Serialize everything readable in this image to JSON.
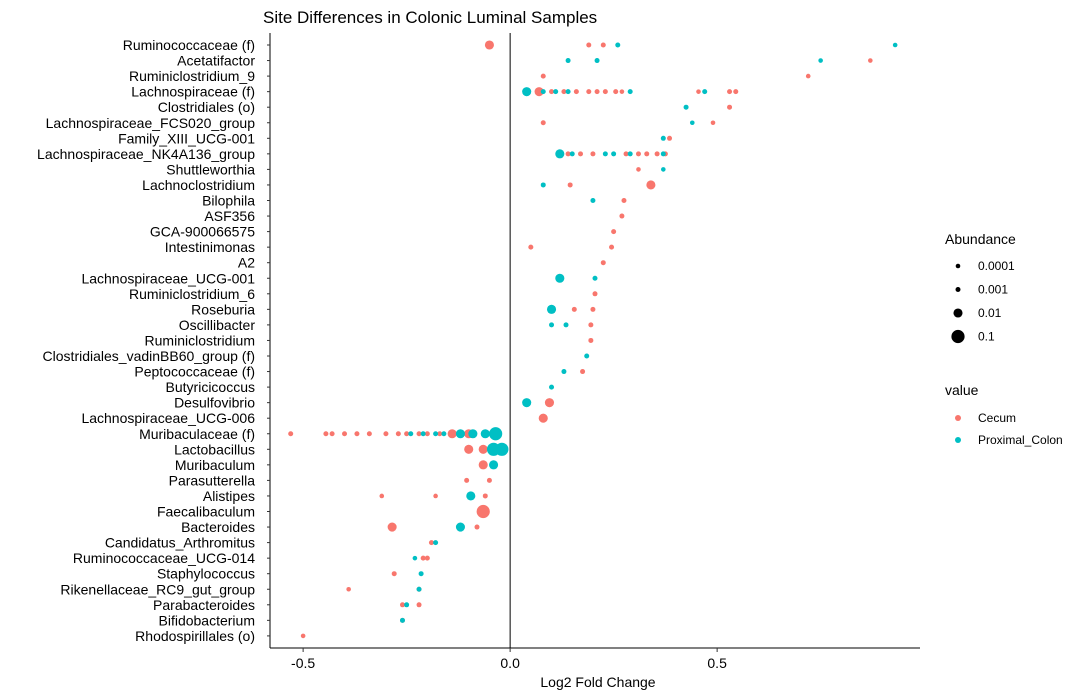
{
  "chart_data": {
    "type": "scatter",
    "title": "Site Differences in Colonic Luminal Samples",
    "xlabel": "Log2 Fold Change",
    "ylabel": "",
    "xlim": [
      -0.58,
      0.99
    ],
    "xticks": [
      {
        "value": -0.5,
        "label": "-0.5"
      },
      {
        "value": 0.0,
        "label": "0.0"
      },
      {
        "value": 0.5,
        "label": "0.5"
      }
    ],
    "grid": false,
    "reference_line_x": 0,
    "categories": [
      "Ruminococcaceae (f)",
      "Acetatifactor",
      "Ruminiclostridium_9",
      "Lachnospiraceae (f)",
      "Clostridiales (o)",
      "Lachnospiraceae_FCS020_group",
      "Family_XIII_UCG-001",
      "Lachnospiraceae_NK4A136_group",
      "Shuttleworthia",
      "Lachnoclostridium",
      "Bilophila",
      "ASF356",
      "GCA-900066575",
      "Intestinimonas",
      "A2",
      "Lachnospiraceae_UCG-001",
      "Ruminiclostridium_6",
      "Roseburia",
      "Oscillibacter",
      "Ruminiclostridium",
      "Clostridiales_vadinBB60_group (f)",
      "Peptococcaceae (f)",
      "Butyricicoccus",
      "Desulfovibrio",
      "Lachnospiraceae_UCG-006",
      "Muribaculaceae (f)",
      "Lactobacillus",
      "Muribaculum",
      "Parasutterella",
      "Alistipes",
      "Faecalibaculum",
      "Bacteroides",
      "Candidatus_Arthromitus",
      "Ruminococcaceae_UCG-014",
      "Staphylococcus",
      "Rikenellaceae_RC9_gut_group",
      "Parabacteroides",
      "Bifidobacterium",
      "Rhodospirillales (o)"
    ],
    "legend": {
      "position": "right",
      "size": {
        "title": "Abundance",
        "entries": [
          {
            "label": "0.0001",
            "value": 0.0001
          },
          {
            "label": "0.001",
            "value": 0.001
          },
          {
            "label": "0.01",
            "value": 0.01
          },
          {
            "label": "0.1",
            "value": 0.1
          }
        ]
      },
      "color": {
        "title": "value",
        "entries": [
          {
            "label": "Cecum",
            "color": "#F8766D"
          },
          {
            "label": "Proximal_Colon",
            "color": "#00BFC4"
          }
        ]
      }
    },
    "series": [
      {
        "name": "Cecum",
        "color": "#F8766D",
        "points": [
          {
            "y": "Ruminococcaceae (f)",
            "x": -0.05,
            "abundance": 0.01
          },
          {
            "y": "Ruminococcaceae (f)",
            "x": 0.19,
            "abundance": 0.001
          },
          {
            "y": "Ruminococcaceae (f)",
            "x": 0.225,
            "abundance": 0.001
          },
          {
            "y": "Acetatifactor",
            "x": 0.87,
            "abundance": 0.0001
          },
          {
            "y": "Ruminiclostridium_9",
            "x": 0.08,
            "abundance": 0.001
          },
          {
            "y": "Ruminiclostridium_9",
            "x": 0.72,
            "abundance": 0.0001
          },
          {
            "y": "Lachnospiraceae (f)",
            "x": 0.07,
            "abundance": 0.01
          },
          {
            "y": "Lachnospiraceae (f)",
            "x": 0.1,
            "abundance": 0.001
          },
          {
            "y": "Lachnospiraceae (f)",
            "x": 0.13,
            "abundance": 0.001
          },
          {
            "y": "Lachnospiraceae (f)",
            "x": 0.16,
            "abundance": 0.001
          },
          {
            "y": "Lachnospiraceae (f)",
            "x": 0.19,
            "abundance": 0.001
          },
          {
            "y": "Lachnospiraceae (f)",
            "x": 0.21,
            "abundance": 0.001
          },
          {
            "y": "Lachnospiraceae (f)",
            "x": 0.23,
            "abundance": 0.001
          },
          {
            "y": "Lachnospiraceae (f)",
            "x": 0.255,
            "abundance": 0.001
          },
          {
            "y": "Lachnospiraceae (f)",
            "x": 0.27,
            "abundance": 0.0001
          },
          {
            "y": "Lachnospiraceae (f)",
            "x": 0.455,
            "abundance": 0.0001
          },
          {
            "y": "Lachnospiraceae (f)",
            "x": 0.53,
            "abundance": 0.001
          },
          {
            "y": "Lachnospiraceae (f)",
            "x": 0.545,
            "abundance": 0.001
          },
          {
            "y": "Clostridiales (o)",
            "x": 0.53,
            "abundance": 0.001
          },
          {
            "y": "Lachnospiraceae_FCS020_group",
            "x": 0.08,
            "abundance": 0.001
          },
          {
            "y": "Lachnospiraceae_FCS020_group",
            "x": 0.49,
            "abundance": 0.0001
          },
          {
            "y": "Family_XIII_UCG-001",
            "x": 0.385,
            "abundance": 0.001
          },
          {
            "y": "Lachnospiraceae_NK4A136_group",
            "x": 0.14,
            "abundance": 0.001
          },
          {
            "y": "Lachnospiraceae_NK4A136_group",
            "x": 0.17,
            "abundance": 0.001
          },
          {
            "y": "Lachnospiraceae_NK4A136_group",
            "x": 0.2,
            "abundance": 0.001
          },
          {
            "y": "Lachnospiraceae_NK4A136_group",
            "x": 0.28,
            "abundance": 0.001
          },
          {
            "y": "Lachnospiraceae_NK4A136_group",
            "x": 0.31,
            "abundance": 0.001
          },
          {
            "y": "Lachnospiraceae_NK4A136_group",
            "x": 0.33,
            "abundance": 0.001
          },
          {
            "y": "Lachnospiraceae_NK4A136_group",
            "x": 0.355,
            "abundance": 0.001
          },
          {
            "y": "Lachnospiraceae_NK4A136_group",
            "x": 0.375,
            "abundance": 0.001
          },
          {
            "y": "Shuttleworthia",
            "x": 0.31,
            "abundance": 0.0001
          },
          {
            "y": "Lachnoclostridium",
            "x": 0.145,
            "abundance": 0.001
          },
          {
            "y": "Lachnoclostridium",
            "x": 0.34,
            "abundance": 0.01
          },
          {
            "y": "Bilophila",
            "x": 0.275,
            "abundance": 0.001
          },
          {
            "y": "ASF356",
            "x": 0.27,
            "abundance": 0.001
          },
          {
            "y": "GCA-900066575",
            "x": 0.25,
            "abundance": 0.001
          },
          {
            "y": "Intestinimonas",
            "x": 0.05,
            "abundance": 0.001
          },
          {
            "y": "Intestinimonas",
            "x": 0.245,
            "abundance": 0.001
          },
          {
            "y": "A2",
            "x": 0.225,
            "abundance": 0.001
          },
          {
            "y": "Ruminiclostridium_6",
            "x": 0.205,
            "abundance": 0.001
          },
          {
            "y": "Roseburia",
            "x": 0.155,
            "abundance": 0.001
          },
          {
            "y": "Roseburia",
            "x": 0.2,
            "abundance": 0.001
          },
          {
            "y": "Oscillibacter",
            "x": 0.195,
            "abundance": 0.001
          },
          {
            "y": "Ruminiclostridium",
            "x": 0.195,
            "abundance": 0.001
          },
          {
            "y": "Peptococcaceae (f)",
            "x": 0.175,
            "abundance": 0.001
          },
          {
            "y": "Desulfovibrio",
            "x": 0.095,
            "abundance": 0.01
          },
          {
            "y": "Lachnospiraceae_UCG-006",
            "x": 0.08,
            "abundance": 0.01
          },
          {
            "y": "Muribaculaceae (f)",
            "x": -0.53,
            "abundance": 0.001
          },
          {
            "y": "Muribaculaceae (f)",
            "x": -0.445,
            "abundance": 0.001
          },
          {
            "y": "Muribaculaceae (f)",
            "x": -0.43,
            "abundance": 0.001
          },
          {
            "y": "Muribaculaceae (f)",
            "x": -0.4,
            "abundance": 0.001
          },
          {
            "y": "Muribaculaceae (f)",
            "x": -0.37,
            "abundance": 0.001
          },
          {
            "y": "Muribaculaceae (f)",
            "x": -0.34,
            "abundance": 0.001
          },
          {
            "y": "Muribaculaceae (f)",
            "x": -0.3,
            "abundance": 0.001
          },
          {
            "y": "Muribaculaceae (f)",
            "x": -0.27,
            "abundance": 0.001
          },
          {
            "y": "Muribaculaceae (f)",
            "x": -0.25,
            "abundance": 0.001
          },
          {
            "y": "Muribaculaceae (f)",
            "x": -0.22,
            "abundance": 0.001
          },
          {
            "y": "Muribaculaceae (f)",
            "x": -0.2,
            "abundance": 0.001
          },
          {
            "y": "Muribaculaceae (f)",
            "x": -0.17,
            "abundance": 0.001
          },
          {
            "y": "Muribaculaceae (f)",
            "x": -0.14,
            "abundance": 0.01
          },
          {
            "y": "Muribaculaceae (f)",
            "x": -0.1,
            "abundance": 0.01
          },
          {
            "y": "Lactobacillus",
            "x": -0.1,
            "abundance": 0.01
          },
          {
            "y": "Lactobacillus",
            "x": -0.065,
            "abundance": 0.01
          },
          {
            "y": "Muribaculum",
            "x": -0.065,
            "abundance": 0.01
          },
          {
            "y": "Parasutterella",
            "x": -0.105,
            "abundance": 0.001
          },
          {
            "y": "Parasutterella",
            "x": -0.05,
            "abundance": 0.001
          },
          {
            "y": "Alistipes",
            "x": -0.31,
            "abundance": 0.0001
          },
          {
            "y": "Alistipes",
            "x": -0.18,
            "abundance": 0.0001
          },
          {
            "y": "Alistipes",
            "x": -0.06,
            "abundance": 0.001
          },
          {
            "y": "Faecalibaculum",
            "x": -0.065,
            "abundance": 0.1
          },
          {
            "y": "Bacteroides",
            "x": -0.285,
            "abundance": 0.01
          },
          {
            "y": "Bacteroides",
            "x": -0.08,
            "abundance": 0.001
          },
          {
            "y": "Candidatus_Arthromitus",
            "x": -0.19,
            "abundance": 0.001
          },
          {
            "y": "Ruminococcaceae_UCG-014",
            "x": -0.21,
            "abundance": 0.001
          },
          {
            "y": "Ruminococcaceae_UCG-014",
            "x": -0.2,
            "abundance": 0.001
          },
          {
            "y": "Staphylococcus",
            "x": -0.28,
            "abundance": 0.001
          },
          {
            "y": "Rikenellaceae_RC9_gut_group",
            "x": -0.39,
            "abundance": 0.0001
          },
          {
            "y": "Rikenellaceae_RC9_gut_group",
            "x": -0.22,
            "abundance": 0.001
          },
          {
            "y": "Parabacteroides",
            "x": -0.26,
            "abundance": 0.001
          },
          {
            "y": "Parabacteroides",
            "x": -0.22,
            "abundance": 0.001
          },
          {
            "y": "Bifidobacterium",
            "x": -0.26,
            "abundance": 0.001
          },
          {
            "y": "Rhodospirillales (o)",
            "x": -0.5,
            "abundance": 0.0001
          }
        ]
      },
      {
        "name": "Proximal_Colon",
        "color": "#00BFC4",
        "points": [
          {
            "y": "Ruminococcaceae (f)",
            "x": 0.26,
            "abundance": 0.001
          },
          {
            "y": "Ruminococcaceae (f)",
            "x": 0.93,
            "abundance": 0.0001
          },
          {
            "y": "Acetatifactor",
            "x": 0.14,
            "abundance": 0.001
          },
          {
            "y": "Acetatifactor",
            "x": 0.21,
            "abundance": 0.001
          },
          {
            "y": "Acetatifactor",
            "x": 0.75,
            "abundance": 0.0001
          },
          {
            "y": "Lachnospiraceae (f)",
            "x": 0.04,
            "abundance": 0.01
          },
          {
            "y": "Lachnospiraceae (f)",
            "x": 0.08,
            "abundance": 0.001
          },
          {
            "y": "Lachnospiraceae (f)",
            "x": 0.11,
            "abundance": 0.001
          },
          {
            "y": "Lachnospiraceae (f)",
            "x": 0.14,
            "abundance": 0.001
          },
          {
            "y": "Lachnospiraceae (f)",
            "x": 0.29,
            "abundance": 0.001
          },
          {
            "y": "Lachnospiraceae (f)",
            "x": 0.47,
            "abundance": 0.001
          },
          {
            "y": "Clostridiales (o)",
            "x": 0.425,
            "abundance": 0.001
          },
          {
            "y": "Lachnospiraceae_FCS020_group",
            "x": 0.44,
            "abundance": 0.0001
          },
          {
            "y": "Family_XIII_UCG-001",
            "x": 0.37,
            "abundance": 0.001
          },
          {
            "y": "Lachnospiraceae_NK4A136_group",
            "x": 0.12,
            "abundance": 0.01
          },
          {
            "y": "Lachnospiraceae_NK4A136_group",
            "x": 0.15,
            "abundance": 0.001
          },
          {
            "y": "Lachnospiraceae_NK4A136_group",
            "x": 0.23,
            "abundance": 0.001
          },
          {
            "y": "Lachnospiraceae_NK4A136_group",
            "x": 0.25,
            "abundance": 0.001
          },
          {
            "y": "Lachnospiraceae_NK4A136_group",
            "x": 0.29,
            "abundance": 0.001
          },
          {
            "y": "Lachnospiraceae_NK4A136_group",
            "x": 0.37,
            "abundance": 0.001
          },
          {
            "y": "Shuttleworthia",
            "x": 0.37,
            "abundance": 0.0001
          },
          {
            "y": "Lachnoclostridium",
            "x": 0.08,
            "abundance": 0.001
          },
          {
            "y": "Bilophila",
            "x": 0.2,
            "abundance": 0.001
          },
          {
            "y": "Lachnospiraceae_UCG-001",
            "x": 0.12,
            "abundance": 0.01
          },
          {
            "y": "Lachnospiraceae_UCG-001",
            "x": 0.205,
            "abundance": 0.001
          },
          {
            "y": "Roseburia",
            "x": 0.1,
            "abundance": 0.01
          },
          {
            "y": "Oscillibacter",
            "x": 0.1,
            "abundance": 0.001
          },
          {
            "y": "Oscillibacter",
            "x": 0.135,
            "abundance": 0.001
          },
          {
            "y": "Clostridiales_vadinBB60_group (f)",
            "x": 0.185,
            "abundance": 0.001
          },
          {
            "y": "Peptococcaceae (f)",
            "x": 0.13,
            "abundance": 0.001
          },
          {
            "y": "Butyricicoccus",
            "x": 0.1,
            "abundance": 0.001
          },
          {
            "y": "Desulfovibrio",
            "x": 0.04,
            "abundance": 0.01
          },
          {
            "y": "Muribaculaceae (f)",
            "x": -0.24,
            "abundance": 0.001
          },
          {
            "y": "Muribaculaceae (f)",
            "x": -0.21,
            "abundance": 0.001
          },
          {
            "y": "Muribaculaceae (f)",
            "x": -0.18,
            "abundance": 0.001
          },
          {
            "y": "Muribaculaceae (f)",
            "x": -0.16,
            "abundance": 0.001
          },
          {
            "y": "Muribaculaceae (f)",
            "x": -0.12,
            "abundance": 0.01
          },
          {
            "y": "Muribaculaceae (f)",
            "x": -0.09,
            "abundance": 0.01
          },
          {
            "y": "Muribaculaceae (f)",
            "x": -0.06,
            "abundance": 0.01
          },
          {
            "y": "Muribaculaceae (f)",
            "x": -0.035,
            "abundance": 0.1
          },
          {
            "y": "Lactobacillus",
            "x": -0.04,
            "abundance": 0.1
          },
          {
            "y": "Lactobacillus",
            "x": -0.02,
            "abundance": 0.1
          },
          {
            "y": "Muribaculum",
            "x": -0.04,
            "abundance": 0.01
          },
          {
            "y": "Alistipes",
            "x": -0.095,
            "abundance": 0.01
          },
          {
            "y": "Bacteroides",
            "x": -0.12,
            "abundance": 0.01
          },
          {
            "y": "Candidatus_Arthromitus",
            "x": -0.18,
            "abundance": 0.001
          },
          {
            "y": "Ruminococcaceae_UCG-014",
            "x": -0.23,
            "abundance": 0.0001
          },
          {
            "y": "Staphylococcus",
            "x": -0.215,
            "abundance": 0.001
          },
          {
            "y": "Rikenellaceae_RC9_gut_group",
            "x": -0.22,
            "abundance": 0.001
          },
          {
            "y": "Parabacteroides",
            "x": -0.25,
            "abundance": 0.001
          },
          {
            "y": "Bifidobacterium",
            "x": -0.26,
            "abundance": 0.001
          }
        ]
      }
    ]
  }
}
